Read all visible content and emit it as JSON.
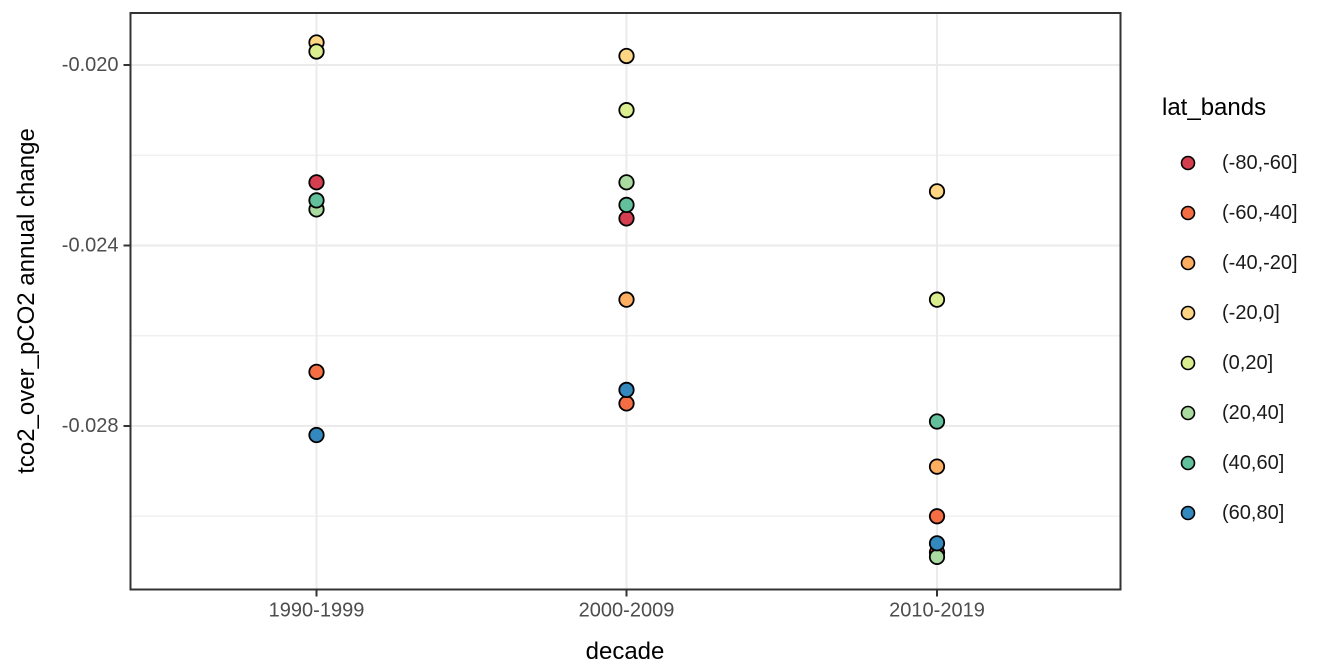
{
  "chart_data": {
    "type": "scatter",
    "title": "",
    "xlabel": "decade",
    "ylabel": "tco2_over_pCO2 annual change",
    "legend_title": "lat_bands",
    "legend_position": "right",
    "grid": true,
    "categories": [
      "1990-1999",
      "2000-2009",
      "2010-2019"
    ],
    "y_ticks": [
      -0.02,
      -0.024,
      -0.028
    ],
    "y_tick_labels": [
      "-0.020",
      "-0.024",
      "-0.028"
    ],
    "y_minor_ticks": [
      -0.022,
      -0.026,
      -0.03
    ],
    "ylim": [
      -0.0316,
      -0.0188
    ],
    "series": [
      {
        "name": "(-80,-60]",
        "color": "#D53E4F",
        "values": [
          -0.0226,
          -0.0234,
          -0.0308
        ]
      },
      {
        "name": "(-60,-40]",
        "color": "#F46D43",
        "values": [
          -0.0268,
          -0.0275,
          -0.03
        ]
      },
      {
        "name": "(-40,-20]",
        "color": "#FDAE61",
        "values": [
          null,
          -0.0252,
          -0.0289
        ]
      },
      {
        "name": "(-20,0]",
        "color": "#FDD583",
        "values": [
          -0.0195,
          -0.0198,
          -0.0228
        ]
      },
      {
        "name": "(0,20]",
        "color": "#DBEE8F",
        "values": [
          -0.0197,
          -0.021,
          -0.0252
        ]
      },
      {
        "name": "(20,40]",
        "color": "#A9DBA0",
        "values": [
          -0.0232,
          -0.0226,
          -0.0309
        ]
      },
      {
        "name": "(40,60]",
        "color": "#63C09C",
        "values": [
          -0.023,
          -0.0231,
          -0.0279
        ]
      },
      {
        "name": "(60,80]",
        "color": "#3389BD",
        "values": [
          -0.0282,
          -0.0272,
          -0.0306
        ]
      }
    ]
  },
  "style_colors": {
    "panel_background": "#FFFFFF",
    "panel_border": "#333333",
    "grid_major": "#EBEBEB",
    "grid_minor": "#F0F0F0",
    "tick_mark": "#333333",
    "tick_label": "#4D4D4D",
    "axis_title": "#000000",
    "point_outline": "#000000",
    "legend_text": "#1A1A1A"
  }
}
